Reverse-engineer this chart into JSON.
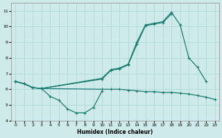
{
  "xlabel": "Humidex (Indice chaleur)",
  "xlim": [
    -0.5,
    23.5
  ],
  "ylim": [
    4,
    11.5
  ],
  "background_color": "#ceeaea",
  "grid_color": "#aad4d4",
  "line_color": "#1a7a6e",
  "xticks": [
    0,
    1,
    2,
    3,
    4,
    5,
    6,
    7,
    8,
    9,
    10,
    11,
    12,
    13,
    14,
    15,
    16,
    17,
    18,
    19,
    20,
    21,
    22,
    23
  ],
  "yticks": [
    4,
    5,
    6,
    7,
    8,
    9,
    10,
    11
  ],
  "curve_steep_x": [
    0,
    1,
    2,
    3,
    10,
    11,
    12,
    13,
    14,
    15,
    16,
    17,
    18
  ],
  "curve_steep_y": [
    6.5,
    6.35,
    6.1,
    6.05,
    6.65,
    7.2,
    7.3,
    7.55,
    8.85,
    10.05,
    10.15,
    10.25,
    10.8
  ],
  "curve_mid_x": [
    0,
    1,
    2,
    3,
    10,
    11,
    12,
    13,
    14,
    15,
    16,
    17,
    18,
    19,
    20,
    21,
    22
  ],
  "curve_mid_y": [
    6.5,
    6.35,
    6.1,
    6.05,
    6.7,
    7.25,
    7.35,
    7.6,
    9.0,
    10.1,
    10.2,
    10.3,
    10.9,
    10.1,
    8.0,
    7.4,
    6.5
  ],
  "curve_flat_x": [
    0,
    1,
    2,
    3,
    10,
    11,
    12,
    13,
    14,
    15,
    16,
    17,
    18,
    19,
    20,
    21,
    22,
    23
  ],
  "curve_flat_y": [
    6.5,
    6.35,
    6.1,
    6.05,
    6.0,
    6.0,
    6.0,
    5.95,
    5.9,
    5.85,
    5.85,
    5.8,
    5.8,
    5.75,
    5.7,
    5.6,
    5.5,
    5.35
  ],
  "curve_dip_x": [
    0,
    1,
    2,
    3,
    4,
    5,
    6,
    7,
    8,
    9,
    10
  ],
  "curve_dip_y": [
    6.5,
    6.35,
    6.1,
    6.05,
    5.55,
    5.3,
    4.75,
    4.5,
    4.5,
    4.85,
    5.9
  ]
}
